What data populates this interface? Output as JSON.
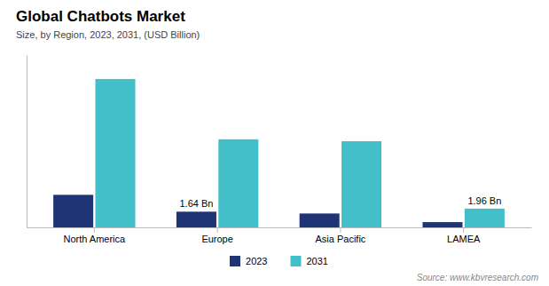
{
  "chart_data": {
    "type": "bar",
    "title": "Global Chatbots Market",
    "subtitle": "Size, by Region, 2023, 2031, (USD Billion)",
    "source": "Source: www.kbvresearch.com",
    "categories": [
      "North America",
      "Europe",
      "Asia Pacific",
      "LAMEA"
    ],
    "series": [
      {
        "name": "2023",
        "color": "#1f3474",
        "values": [
          3.4,
          1.64,
          1.45,
          0.55
        ]
      },
      {
        "name": "2031",
        "color": "#43bfca",
        "values": [
          15.5,
          9.2,
          9.0,
          1.96
        ]
      }
    ],
    "annotations": [
      {
        "text": "1.64 Bn",
        "category": "Europe",
        "series": "2023"
      },
      {
        "text": "1.96 Bn",
        "category": "LAMEA",
        "series": "2031"
      }
    ],
    "ylim": [
      0,
      18
    ],
    "grid": false,
    "legend": "bottom",
    "tick_labels": "x"
  }
}
